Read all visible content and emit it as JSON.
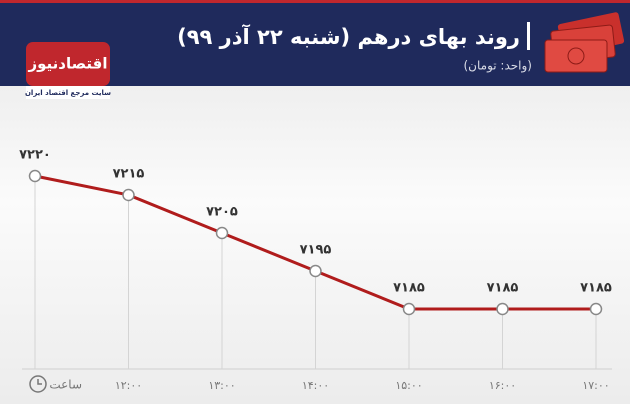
{
  "header": {
    "title": "روند بهای درهم (شنبه ۲۲ آذر ۹۹)",
    "subtitle": "(واحد: تومان)"
  },
  "logo": {
    "name": "اقتصادنیوز",
    "tagline": "سایت مرجع اقتصاد ایران"
  },
  "chart_data": {
    "type": "line",
    "x_label": "ساعت",
    "categories": [
      null,
      "۱۲:۰۰",
      "۱۳:۰۰",
      "۱۴:۰۰",
      "۱۵:۰۰",
      "۱۶:۰۰",
      "۱۷:۰۰"
    ],
    "series": [
      {
        "name": "درهم",
        "color": "#b01c1c",
        "values": [
          7220,
          7215,
          7205,
          7195,
          7185,
          7185,
          7185
        ],
        "value_labels": [
          "۷۲۲۰",
          "۷۲۱۵",
          "۷۲۰۵",
          "۷۱۹۵",
          "۷۱۸۵",
          "۷۱۸۵",
          "۷۱۸۵"
        ]
      }
    ]
  }
}
